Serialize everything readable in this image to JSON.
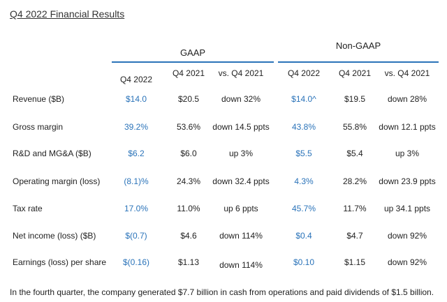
{
  "title": "Q4 2022 Financial Results",
  "groups": {
    "gaap": "GAAP",
    "non_gaap": "Non-GAAP"
  },
  "columns": [
    "Q4 2022",
    "Q4 2021",
    "vs. Q4 2021",
    "Q4 2022",
    "Q4 2021",
    "vs. Q4 2021"
  ],
  "rows": [
    {
      "label": "Revenue ($B)",
      "cells": [
        "$14.0",
        "$20.5",
        "down 32%",
        "$14.0^",
        "$19.5",
        "down 28%"
      ]
    },
    {
      "label": "Gross margin",
      "cells": [
        "39.2%",
        "53.6%",
        "down 14.5 ppts",
        "43.8%",
        "55.8%",
        "down 12.1 ppts"
      ]
    },
    {
      "label": "R&D and MG&A ($B)",
      "cells": [
        "$6.2",
        "$6.0",
        "up 3%",
        "$5.5",
        "$5.4",
        "up 3%"
      ]
    },
    {
      "label": "Operating margin (loss)",
      "cells": [
        "(8.1)%",
        "24.3%",
        "down 32.4 ppts",
        "4.3%",
        "28.2%",
        "down 23.9 ppts"
      ]
    },
    {
      "label": "Tax rate",
      "cells": [
        "17.0%",
        "11.0%",
        "up 6 ppts",
        "45.7%",
        "11.7%",
        "up 34.1 ppts"
      ]
    },
    {
      "label": "Net income (loss) ($B)",
      "cells": [
        "$(0.7)",
        "$4.6",
        "down 114%",
        "$0.4",
        "$4.7",
        "down 92%"
      ]
    },
    {
      "label": "Earnings (loss) per share",
      "cells": [
        "$(0.16)",
        "$1.13",
        "down 114%",
        "$0.10",
        "$1.15",
        "down 92%"
      ]
    }
  ],
  "footnote": "In the fourth quarter, the company generated $7.7 billion in cash from operations and paid dividends of $1.5 billion.",
  "colors": {
    "accent": "#2a73b9",
    "text": "#222222"
  }
}
